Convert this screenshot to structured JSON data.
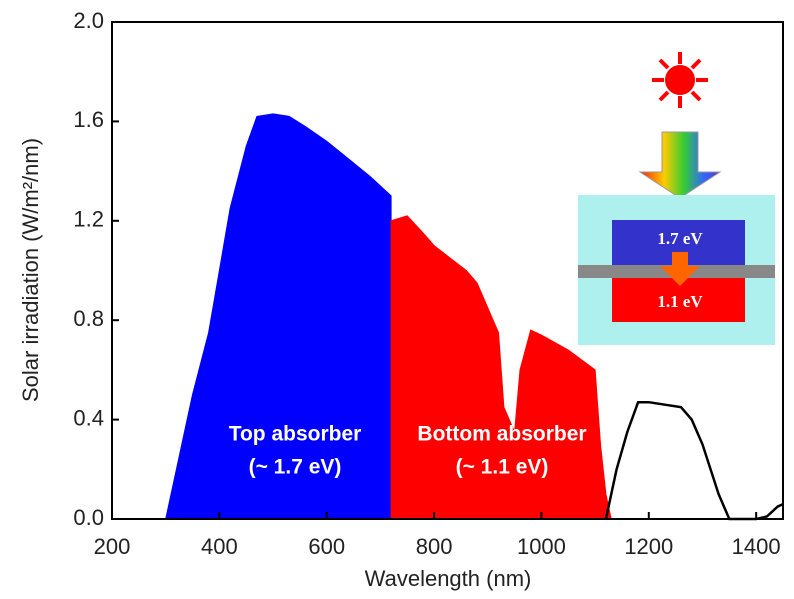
{
  "chart_data": {
    "type": "area",
    "x_label": "Wavelength (nm)",
    "y_label": "Solar irradiation (W/m²/nm)",
    "xlim": [
      200,
      1450
    ],
    "ylim": [
      0,
      2.0
    ],
    "xticks": [
      200,
      400,
      600,
      800,
      1000,
      1200,
      1400
    ],
    "yticks": [
      {
        "value": 0,
        "label": "0.0"
      },
      0.4,
      0.8,
      1.2,
      1.6,
      {
        "value": 2,
        "label": "2.0"
      }
    ],
    "series": [
      {
        "color": "#0000ff",
        "fill": true,
        "x": [
          300,
          320,
          350,
          380,
          400,
          420,
          450,
          470,
          500,
          530,
          560,
          600,
          640,
          680,
          710,
          720
        ],
        "values": [
          0,
          0.2,
          0.5,
          0.75,
          1.0,
          1.25,
          1.5,
          1.62,
          1.63,
          1.62,
          1.58,
          1.52,
          1.45,
          1.38,
          1.32,
          1.3
        ]
      },
      {
        "color": "#ff0000",
        "fill": true,
        "x": [
          720,
          750,
          780,
          800,
          830,
          860,
          880,
          900,
          920,
          930,
          950,
          960,
          980,
          1000,
          1050,
          1100,
          1110,
          1120,
          1130
        ],
        "values": [
          1.2,
          1.22,
          1.15,
          1.1,
          1.05,
          1.0,
          0.95,
          0.85,
          0.75,
          0.45,
          0.35,
          0.6,
          0.76,
          0.74,
          0.68,
          0.6,
          0.3,
          0.1,
          0
        ]
      },
      {
        "color": "#000000",
        "fill": false,
        "x": [
          1120,
          1140,
          1160,
          1180,
          1200,
          1230,
          1260,
          1280,
          1300,
          1330,
          1350,
          1400,
          1420,
          1440,
          1450
        ],
        "values": [
          0,
          0.2,
          0.35,
          0.47,
          0.47,
          0.46,
          0.45,
          0.4,
          0.3,
          0.1,
          0,
          0,
          0.01,
          0.05,
          0.06
        ]
      }
    ],
    "annotations": [
      "Top absorber",
      "(~ 1.7 eV)",
      "Bottom absorber",
      "(~ 1.1 eV)",
      "1.7 eV",
      "1.1 eV"
    ]
  }
}
